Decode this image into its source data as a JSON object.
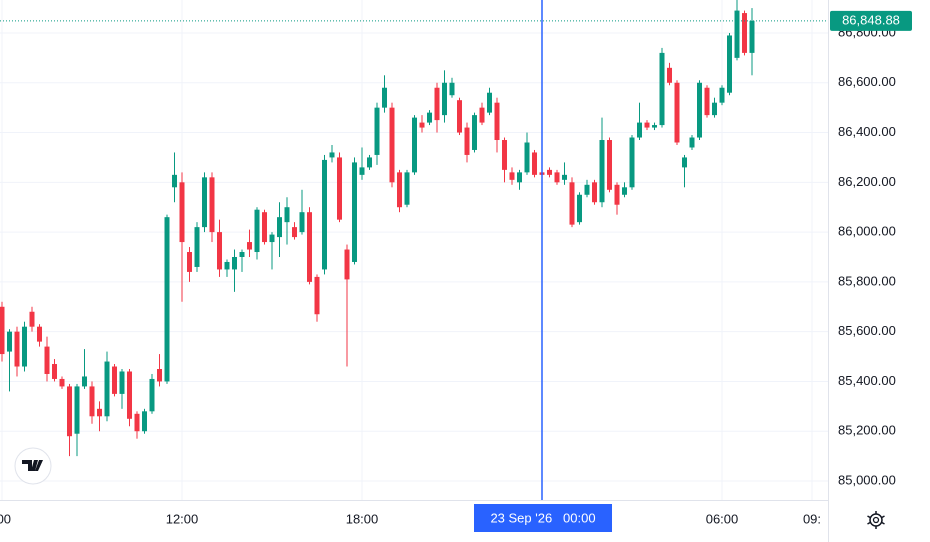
{
  "chart_data": {
    "type": "candlestick",
    "x": [
      6,
      6.25,
      6.5,
      6.75,
      7,
      7.25,
      7.5,
      7.75,
      8,
      8.25,
      8.5,
      8.75,
      9,
      9.25,
      9.5,
      9.75,
      10,
      10.25,
      10.5,
      10.75,
      11,
      11.25,
      11.5,
      11.75,
      12,
      12.25,
      12.5,
      12.75,
      13,
      13.25,
      13.5,
      13.75,
      14,
      14.25,
      14.5,
      14.75,
      15,
      15.25,
      15.5,
      15.75,
      16,
      16.25,
      16.5,
      16.75,
      17,
      17.25,
      17.5,
      17.75,
      18,
      18.25,
      18.5,
      18.75,
      19,
      19.25,
      19.5,
      19.75,
      20,
      20.25,
      20.5,
      20.75,
      21,
      21.25,
      21.5,
      21.75,
      22,
      22.25,
      22.5,
      22.75,
      23,
      23.25,
      23.5,
      23.75,
      24,
      24.25,
      24.5,
      24.75,
      25,
      25.25,
      25.5,
      25.75,
      26,
      26.25,
      26.5,
      26.75,
      27,
      27.25,
      27.5,
      27.75,
      28,
      28.25,
      28.5,
      28.75,
      29,
      29.25,
      29.5,
      29.75,
      30,
      30.25,
      30.5,
      30.75,
      31
    ],
    "open": [
      85700,
      85520,
      85600,
      85460,
      85680,
      85620,
      85540,
      85470,
      85410,
      85380,
      85190,
      85380,
      85380,
      85290,
      85260,
      85460,
      85350,
      85440,
      85270,
      85200,
      85280,
      85450,
      85400,
      86180,
      86200,
      85920,
      85860,
      86020,
      86220,
      86000,
      85850,
      85850,
      85900,
      85960,
      85920,
      86080,
      85960,
      85980,
      86040,
      86020,
      86000,
      86080,
      85820,
      85850,
      86300,
      86300,
      85930,
      85880,
      86230,
      86260,
      86310,
      86500,
      86500,
      86240,
      86110,
      86240,
      86440,
      86440,
      86580,
      86470,
      86550,
      86530,
      86420,
      86330,
      86500,
      86480,
      86520,
      86370,
      86240,
      86200,
      86240,
      86320,
      86240,
      86250,
      86240,
      86210,
      86200,
      86040,
      86150,
      86200,
      86120,
      86370,
      86190,
      86150,
      86180,
      86380,
      86440,
      86420,
      86430,
      86660,
      86600,
      86260,
      86340,
      86380,
      86580,
      86470,
      86520,
      86560,
      86700,
      86880,
      86720
    ],
    "high": [
      85720,
      85610,
      85620,
      85640,
      85700,
      85630,
      85580,
      85490,
      85420,
      85390,
      85390,
      85530,
      85400,
      85320,
      85520,
      85470,
      85450,
      85450,
      85280,
      85290,
      85430,
      85510,
      86070,
      86320,
      86240,
      85940,
      86040,
      86240,
      86240,
      86050,
      85890,
      85930,
      85930,
      86010,
      86100,
      86090,
      86000,
      86120,
      86140,
      86040,
      86170,
      86100,
      85830,
      86310,
      86350,
      86320,
      85950,
      86300,
      86340,
      86310,
      86520,
      86630,
      86520,
      86250,
      86250,
      86470,
      86470,
      86490,
      86600,
      86650,
      86620,
      86540,
      86440,
      86480,
      86520,
      86580,
      86540,
      86380,
      86260,
      86250,
      86400,
      86330,
      86270,
      86260,
      86250,
      86280,
      86220,
      86160,
      86210,
      86210,
      86460,
      86380,
      86200,
      86200,
      86390,
      86520,
      86450,
      86440,
      86740,
      86680,
      86610,
      86310,
      86390,
      86610,
      86590,
      86540,
      86590,
      86800,
      86940,
      86890,
      86900
    ],
    "low": [
      85480,
      85360,
      85420,
      85440,
      85600,
      85540,
      85400,
      85400,
      85370,
      85100,
      85100,
      85370,
      85230,
      85200,
      85240,
      85340,
      85290,
      85220,
      85170,
      85190,
      85270,
      85380,
      85390,
      86120,
      85720,
      85800,
      85840,
      86000,
      85960,
      85820,
      85820,
      85760,
      85840,
      85900,
      85890,
      85950,
      85850,
      85900,
      85950,
      85970,
      85990,
      85790,
      85640,
      85830,
      86280,
      86040,
      85460,
      85870,
      86210,
      86250,
      86270,
      86480,
      86180,
      86080,
      86100,
      86230,
      86400,
      86430,
      86400,
      86440,
      86540,
      86390,
      86280,
      86320,
      86430,
      86470,
      86320,
      86200,
      86190,
      86170,
      86230,
      86220,
      86220,
      86220,
      86190,
      86190,
      86020,
      86030,
      86140,
      86110,
      86100,
      86160,
      86070,
      86140,
      86170,
      86370,
      86410,
      86410,
      86420,
      86590,
      86350,
      86180,
      86330,
      86370,
      86460,
      86460,
      86510,
      86550,
      86690,
      86710,
      86630
    ],
    "close": [
      85510,
      85600,
      85460,
      85620,
      85620,
      85560,
      85430,
      85410,
      85380,
      85180,
      85380,
      85420,
      85260,
      85260,
      85480,
      85350,
      85440,
      85250,
      85200,
      85280,
      85410,
      85400,
      86060,
      86230,
      85960,
      85840,
      86020,
      86220,
      86000,
      85850,
      85880,
      85900,
      85920,
      85930,
      86090,
      85960,
      85990,
      86060,
      86100,
      85980,
      86080,
      85800,
      85670,
      86290,
      86320,
      86050,
      85810,
      86280,
      86260,
      86300,
      86500,
      86580,
      86200,
      86100,
      86240,
      86460,
      86420,
      86480,
      86450,
      86600,
      86600,
      86400,
      86310,
      86470,
      86440,
      86560,
      86370,
      86250,
      86210,
      86240,
      86360,
      86230,
      86230,
      86230,
      86200,
      86230,
      86030,
      86150,
      86190,
      86120,
      86370,
      86170,
      86110,
      86180,
      86380,
      86440,
      86420,
      86430,
      86720,
      86600,
      86360,
      86300,
      86380,
      86600,
      86470,
      86520,
      86580,
      86790,
      86890,
      86720,
      86848.88
    ],
    "up_color": "#089981",
    "down_color": "#f23645",
    "grid": true,
    "xlim": [
      5.9333,
      33.5333
    ],
    "xticks": [
      {
        "value": 6,
        "label": ":00"
      },
      {
        "value": 12,
        "label": "12:00"
      },
      {
        "value": 18,
        "label": "18:00"
      },
      {
        "value": 30,
        "label": "06:00"
      },
      {
        "value": 33,
        "label": "09:"
      }
    ],
    "ylim": [
      84923.7,
      86932.5
    ],
    "yticks": [
      {
        "value": 85000,
        "label": "85,000.00"
      },
      {
        "value": 85200,
        "label": "85,200.00"
      },
      {
        "value": 85400,
        "label": "85,400.00"
      },
      {
        "value": 85600,
        "label": "85,600.00"
      },
      {
        "value": 85800,
        "label": "85,800.00"
      },
      {
        "value": 86000,
        "label": "86,000.00"
      },
      {
        "value": 86200,
        "label": "86,200.00"
      },
      {
        "value": 86400,
        "label": "86,400.00"
      },
      {
        "value": 86600,
        "label": "86,600.00"
      },
      {
        "value": 86800,
        "label": "86,800.00"
      }
    ],
    "last_price": {
      "value": 86848.88,
      "label": "86,848.88"
    },
    "crosshair": {
      "x": 24,
      "label": "23 Sep '26   00:00"
    }
  }
}
